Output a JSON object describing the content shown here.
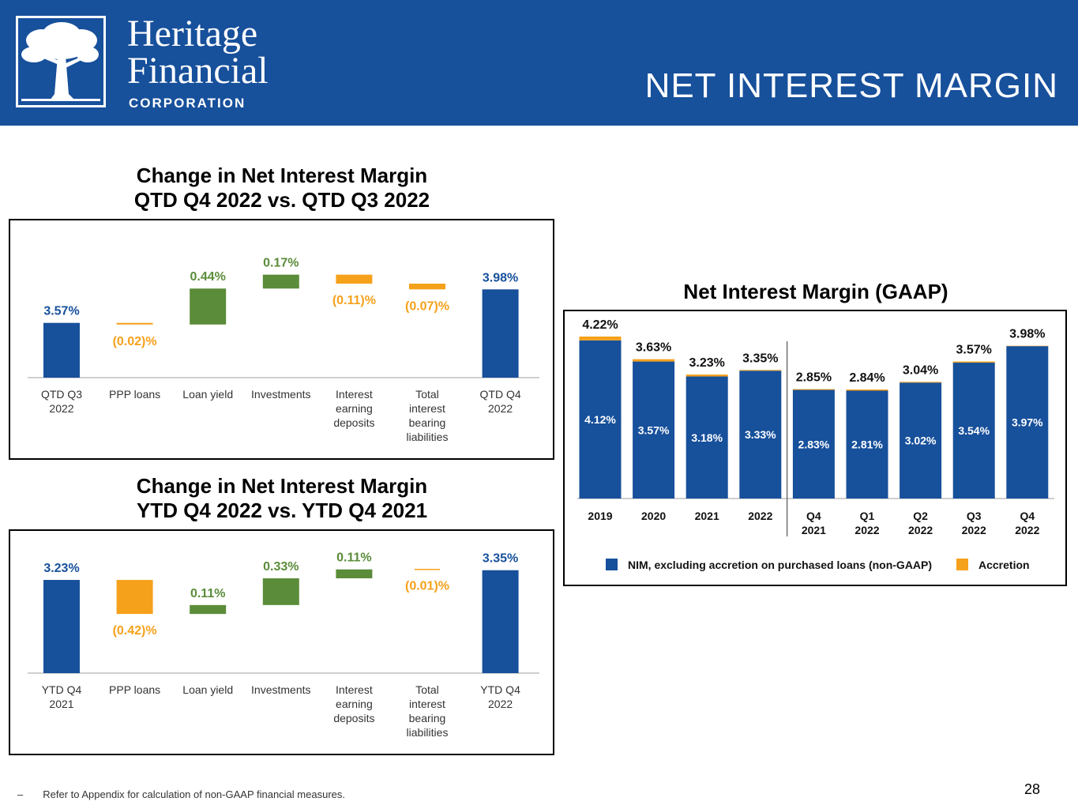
{
  "header": {
    "logo_line1": "Heritage",
    "logo_line2": "Financial",
    "logo_line3": "CORPORATION",
    "logo_icon": "tree-icon",
    "title": "NET INTEREST MARGIN"
  },
  "colors": {
    "header_bg": "#17509b",
    "bar_blue": "#17509b",
    "bar_green": "#5b8c3a",
    "bar_orange": "#f6a11b"
  },
  "chart_data": [
    {
      "id": "qtd",
      "type": "waterfall",
      "title_line1": "Change in Net Interest Margin",
      "title_line2": "QTD Q4 2022 vs. QTD Q3 2022",
      "categories": [
        "QTD Q3\n2022",
        "PPP loans",
        "Loan yield",
        "Investments",
        "Interest\nearning\ndeposits",
        "Total\ninterest\nbearing\nliabilities",
        "QTD Q4\n2022"
      ],
      "values": [
        3.57,
        -0.02,
        0.44,
        0.17,
        -0.11,
        -0.07,
        3.98
      ],
      "kinds": [
        "total",
        "delta",
        "delta",
        "delta",
        "delta",
        "delta",
        "total"
      ],
      "labels": [
        "3.57%",
        "(0.02)%",
        "0.44%",
        "0.17%",
        "(0.11)%",
        "(0.07)%",
        "3.98%"
      ],
      "ylim": [
        2.9,
        4.35
      ]
    },
    {
      "id": "ytd",
      "type": "waterfall",
      "title_line1": "Change in Net Interest Margin",
      "title_line2": "YTD Q4 2022 vs. YTD Q4 2021",
      "categories": [
        "YTD Q4\n2021",
        "PPP loans",
        "Loan yield",
        "Investments",
        "Interest\nearning\ndeposits",
        "Total\ninterest\nbearing\nliabilities",
        "YTD Q4\n2022"
      ],
      "values": [
        3.23,
        -0.42,
        0.11,
        0.33,
        0.11,
        -0.01,
        3.35
      ],
      "kinds": [
        "total",
        "delta",
        "delta",
        "delta",
        "delta",
        "delta",
        "total"
      ],
      "labels": [
        "3.23%",
        "(0.42)%",
        "0.11%",
        "0.33%",
        "0.11%",
        "(0.01)%",
        "3.35%"
      ],
      "ylim": [
        2.08,
        3.64
      ]
    },
    {
      "id": "gaap",
      "type": "bar",
      "stacked": true,
      "title": "Net Interest Margin (GAAP)",
      "categories": [
        "2019",
        "2020",
        "2021",
        "2022",
        "Q4\n2021",
        "Q1\n2022",
        "Q2\n2022",
        "Q3\n2022",
        "Q4\n2022"
      ],
      "series": [
        {
          "name": "NIM, excluding accretion on purchased loans (non-GAAP)",
          "values": [
            4.12,
            3.57,
            3.18,
            3.33,
            2.83,
            2.81,
            3.02,
            3.54,
            3.97
          ],
          "labels": [
            "4.12%",
            "3.57%",
            "3.18%",
            "3.33%",
            "2.83%",
            "2.81%",
            "3.02%",
            "3.54%",
            "3.97%"
          ]
        },
        {
          "name": "Accretion",
          "values": [
            0.1,
            0.06,
            0.05,
            0.02,
            0.02,
            0.03,
            0.02,
            0.03,
            0.01
          ]
        }
      ],
      "totals": [
        "4.22%",
        "3.63%",
        "3.23%",
        "3.35%",
        "2.85%",
        "2.84%",
        "3.04%",
        "3.57%",
        "3.98%"
      ],
      "ylim": [
        0,
        4.6
      ],
      "divider_after_index": 3
    }
  ],
  "footnote": {
    "dash": "–",
    "text": "Refer to Appendix for calculation of non-GAAP financial measures."
  },
  "page_number": "28"
}
